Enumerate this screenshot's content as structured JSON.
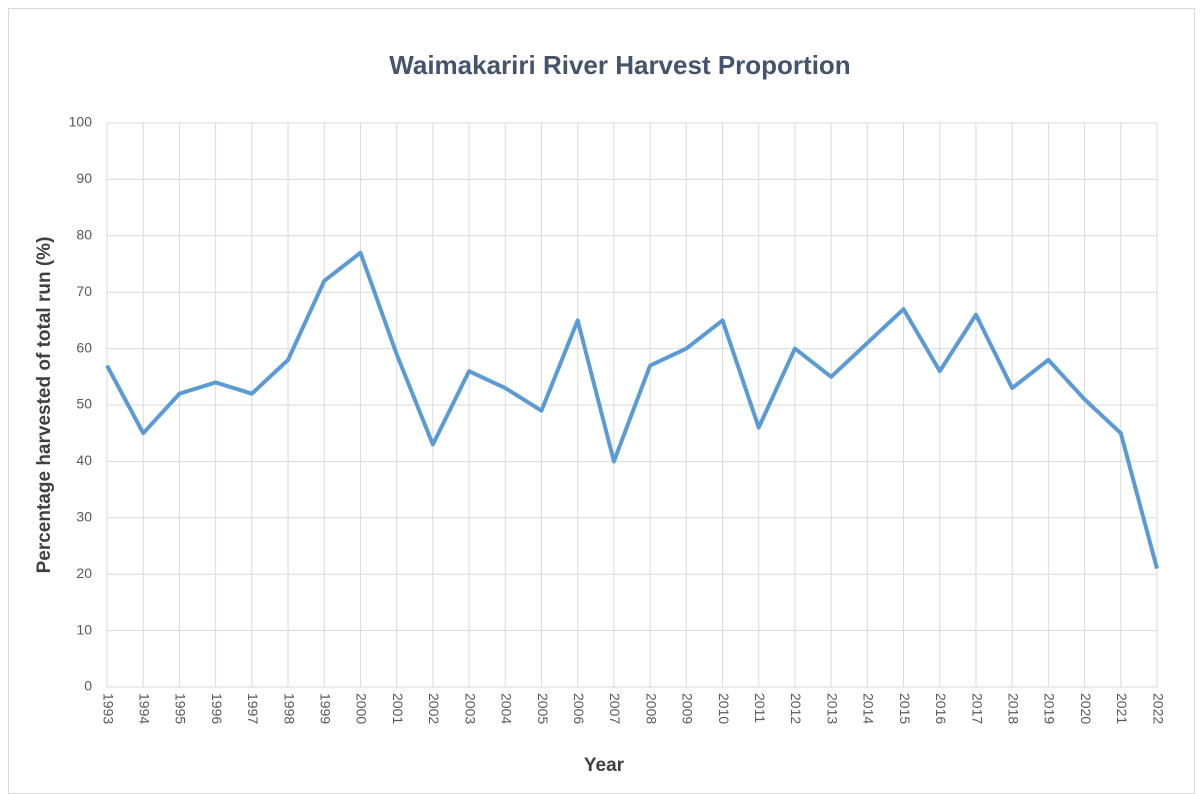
{
  "chart_data": {
    "type": "line",
    "title": "Waimakariri River Harvest Proportion",
    "x_label": "Year",
    "y_label": "Percentage harvested of total run (%)",
    "x": [
      1993,
      1994,
      1995,
      1996,
      1997,
      1998,
      1999,
      2000,
      2001,
      2002,
      2003,
      2004,
      2005,
      2006,
      2007,
      2008,
      2009,
      2010,
      2011,
      2012,
      2013,
      2014,
      2015,
      2016,
      2017,
      2018,
      2019,
      2020,
      2021,
      2022
    ],
    "series": [
      {
        "color": "#5b9bd5",
        "values": [
          57,
          45,
          52,
          54,
          52,
          58,
          72,
          77,
          59,
          43,
          56,
          53,
          49,
          65,
          40,
          57,
          60,
          65,
          46,
          60,
          55,
          61,
          67,
          56,
          66,
          53,
          58,
          51,
          45,
          21
        ]
      }
    ],
    "xlim": [
      1993,
      2022
    ],
    "xticks": [
      1993,
      1994,
      1995,
      1996,
      1997,
      1998,
      1999,
      2000,
      2001,
      2002,
      2003,
      2004,
      2005,
      2006,
      2007,
      2008,
      2009,
      2010,
      2011,
      2012,
      2013,
      2014,
      2015,
      2016,
      2017,
      2018,
      2019,
      2020,
      2021,
      2022
    ],
    "ylim": [
      0,
      100
    ],
    "yticks": [
      0,
      10,
      20,
      30,
      40,
      50,
      60,
      70,
      80,
      90,
      100
    ],
    "grid": true
  }
}
